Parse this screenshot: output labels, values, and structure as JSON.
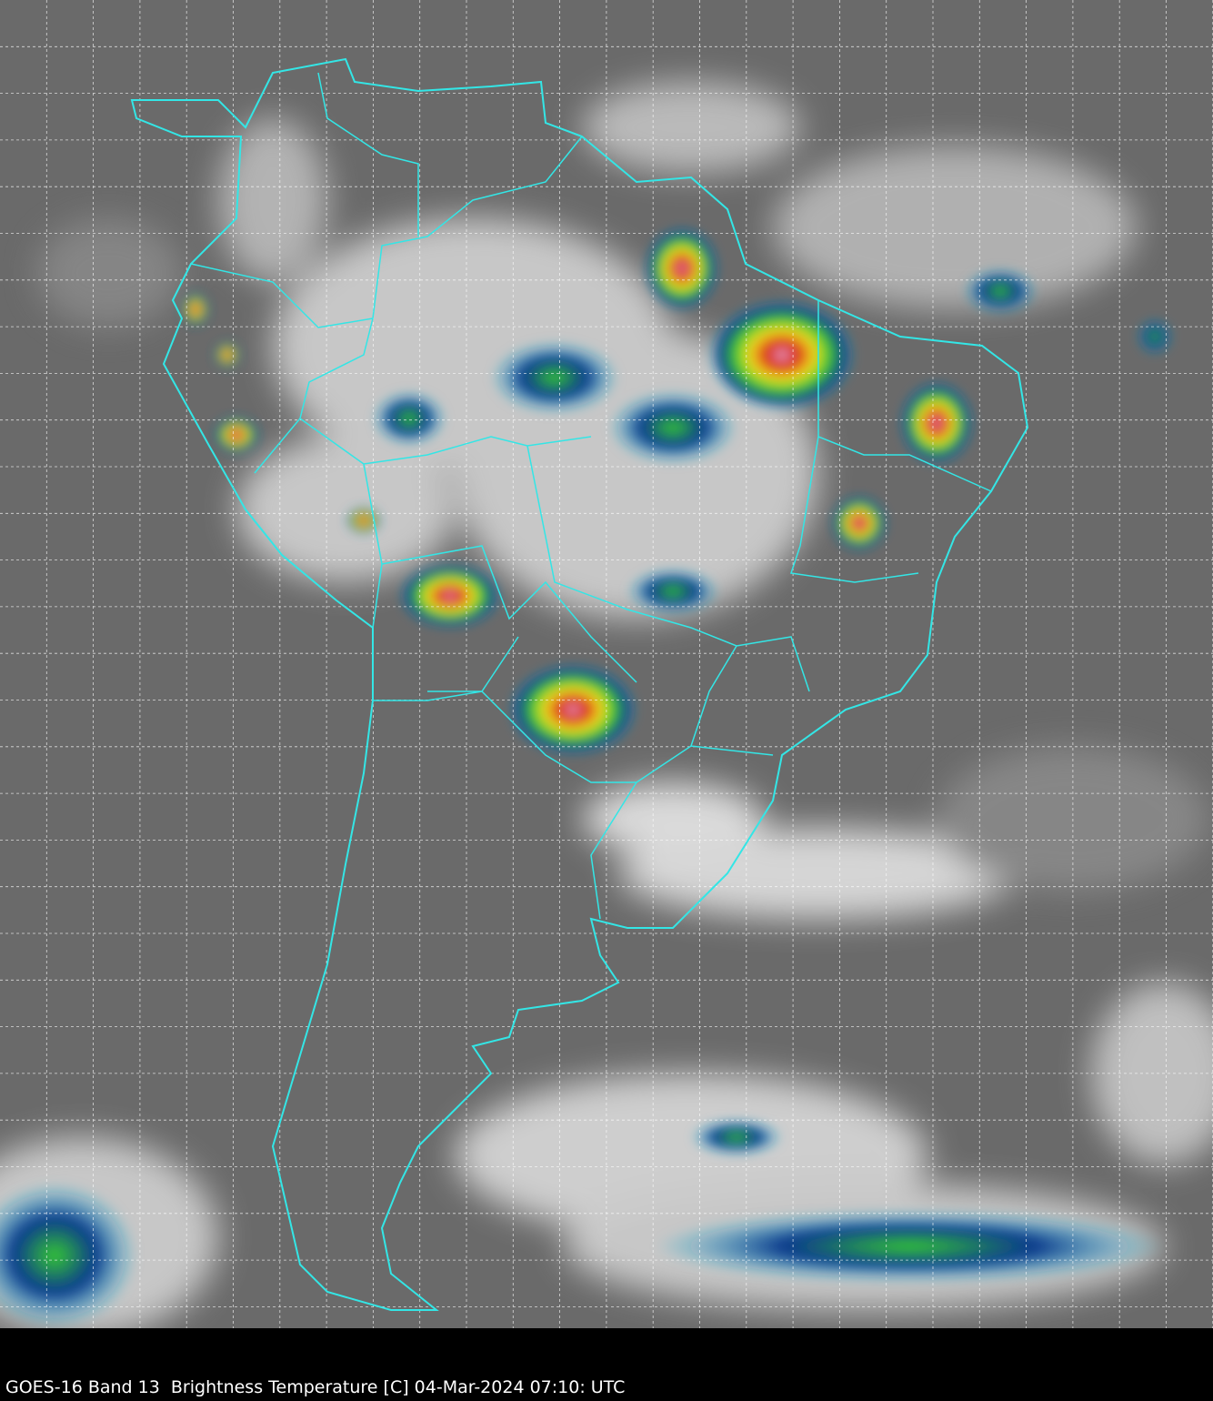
{
  "caption": "GOES-16 Band 13  Brightness Temperature [C] 04-Mar-2024 07:10: UTC",
  "colors": {
    "background_cloudfree": "#6e6e6e",
    "cloud_cold": "#f0f0f0",
    "border": "#33e6e6",
    "grid": "#ffffff",
    "very_cold_blue": "#0a3a8c",
    "cold_cyan": "#18b4d8",
    "colder_green": "#36c832",
    "yellow": "#f0e020",
    "red": "#d82010",
    "coldest": "#e8b0e0"
  },
  "grid": "dashed lat/lon lines"
}
